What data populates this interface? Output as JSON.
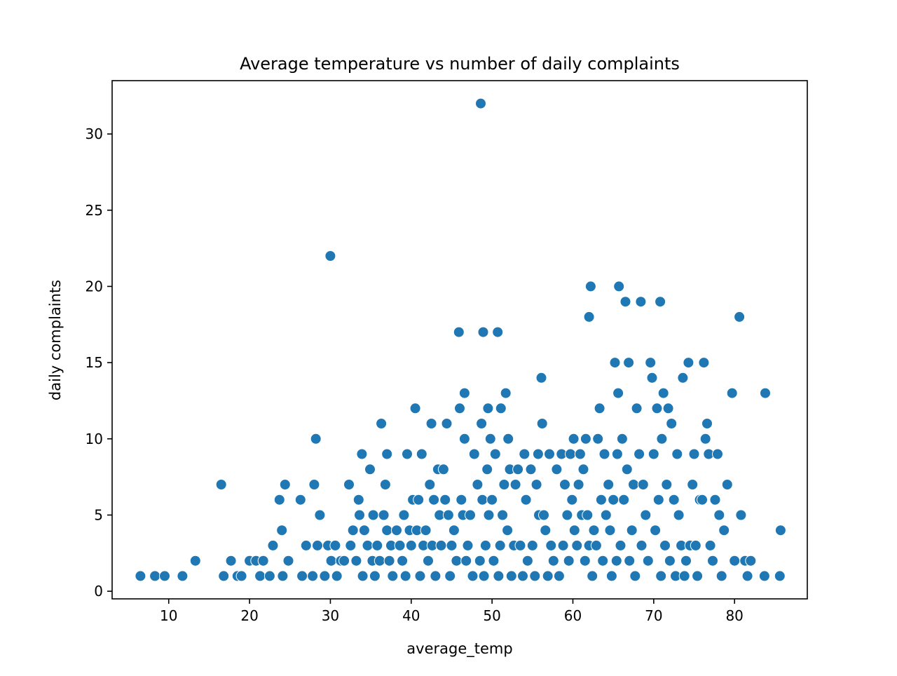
{
  "chart_data": {
    "type": "scatter",
    "title": "Average temperature vs number of daily complaints",
    "xlabel": "average_temp",
    "ylabel": "daily complaints",
    "xlim": [
      3,
      89
    ],
    "ylim": [
      -0.5,
      33.5
    ],
    "xticks": [
      10,
      20,
      30,
      40,
      50,
      60,
      70,
      80
    ],
    "yticks": [
      0,
      5,
      10,
      15,
      20,
      25,
      30
    ],
    "grid": false,
    "legend": "none",
    "marker_color": "#1f77b4",
    "points": [
      [
        6.5,
        1
      ],
      [
        8.3,
        1
      ],
      [
        9.5,
        1
      ],
      [
        11.7,
        1
      ],
      [
        13.3,
        2
      ],
      [
        16.5,
        7
      ],
      [
        16.8,
        1
      ],
      [
        17.7,
        2
      ],
      [
        18.5,
        1
      ],
      [
        19,
        1
      ],
      [
        20,
        2
      ],
      [
        20.8,
        2
      ],
      [
        21.3,
        1
      ],
      [
        21.7,
        2
      ],
      [
        22.5,
        1
      ],
      [
        22.9,
        3
      ],
      [
        23.7,
        6
      ],
      [
        24,
        4
      ],
      [
        24.1,
        1
      ],
      [
        24.4,
        7
      ],
      [
        24.8,
        2
      ],
      [
        26.3,
        6
      ],
      [
        26.5,
        1
      ],
      [
        27,
        3
      ],
      [
        27.8,
        1
      ],
      [
        28,
        7
      ],
      [
        28.2,
        10
      ],
      [
        28.4,
        3
      ],
      [
        28.7,
        5
      ],
      [
        29.3,
        1
      ],
      [
        29.7,
        3
      ],
      [
        30,
        22
      ],
      [
        30.1,
        2
      ],
      [
        30.6,
        3
      ],
      [
        30.8,
        1
      ],
      [
        31.3,
        2
      ],
      [
        31.7,
        2
      ],
      [
        32.3,
        7
      ],
      [
        32.5,
        3
      ],
      [
        32.8,
        4
      ],
      [
        33.2,
        2
      ],
      [
        33.5,
        6
      ],
      [
        33.6,
        5
      ],
      [
        33.9,
        9
      ],
      [
        34,
        1
      ],
      [
        34.2,
        4
      ],
      [
        34.6,
        3
      ],
      [
        34.9,
        8
      ],
      [
        35.2,
        2
      ],
      [
        35.3,
        5
      ],
      [
        35.5,
        1
      ],
      [
        35.8,
        3
      ],
      [
        36.1,
        2
      ],
      [
        36.3,
        11
      ],
      [
        36.6,
        5
      ],
      [
        36.8,
        7
      ],
      [
        37,
        9
      ],
      [
        37,
        4
      ],
      [
        37.3,
        2
      ],
      [
        37.5,
        3
      ],
      [
        37.7,
        1
      ],
      [
        38.2,
        4
      ],
      [
        38.6,
        3
      ],
      [
        38.9,
        2
      ],
      [
        39.1,
        5
      ],
      [
        39.3,
        1
      ],
      [
        39.5,
        9
      ],
      [
        39.8,
        4
      ],
      [
        40,
        3
      ],
      [
        40.2,
        6
      ],
      [
        40.5,
        12
      ],
      [
        40.7,
        4
      ],
      [
        40.9,
        6
      ],
      [
        41.1,
        1
      ],
      [
        41.3,
        9
      ],
      [
        41.5,
        3
      ],
      [
        41.8,
        4
      ],
      [
        42.1,
        2
      ],
      [
        42.3,
        7
      ],
      [
        42.5,
        11
      ],
      [
        42.6,
        3
      ],
      [
        42.8,
        6
      ],
      [
        43,
        1
      ],
      [
        43.3,
        8
      ],
      [
        43.5,
        5
      ],
      [
        43.7,
        3
      ],
      [
        44,
        8
      ],
      [
        44.2,
        6
      ],
      [
        44.4,
        11
      ],
      [
        44.6,
        5
      ],
      [
        44.8,
        1
      ],
      [
        45,
        3
      ],
      [
        45.3,
        4
      ],
      [
        45.6,
        2
      ],
      [
        45.9,
        17
      ],
      [
        46,
        12
      ],
      [
        46.2,
        6
      ],
      [
        46.4,
        5
      ],
      [
        46.6,
        13
      ],
      [
        46.6,
        10
      ],
      [
        46.8,
        2
      ],
      [
        47,
        3
      ],
      [
        47.3,
        5
      ],
      [
        47.6,
        1
      ],
      [
        47.8,
        9
      ],
      [
        48.2,
        7
      ],
      [
        48.5,
        2
      ],
      [
        48.6,
        32
      ],
      [
        48.7,
        11
      ],
      [
        48.8,
        6
      ],
      [
        48.9,
        17
      ],
      [
        49,
        1
      ],
      [
        49.2,
        3
      ],
      [
        49.4,
        8
      ],
      [
        49.5,
        12
      ],
      [
        49.6,
        5
      ],
      [
        49.8,
        10
      ],
      [
        50,
        6
      ],
      [
        50.2,
        2
      ],
      [
        50.4,
        9
      ],
      [
        50.7,
        17
      ],
      [
        50.8,
        1
      ],
      [
        51,
        3
      ],
      [
        51.1,
        12
      ],
      [
        51.3,
        5
      ],
      [
        51.5,
        7
      ],
      [
        51.7,
        13
      ],
      [
        51.9,
        4
      ],
      [
        52,
        10
      ],
      [
        52.2,
        8
      ],
      [
        52.4,
        1
      ],
      [
        52.7,
        3
      ],
      [
        52.9,
        7
      ],
      [
        53.2,
        8
      ],
      [
        53.5,
        3
      ],
      [
        53.8,
        1
      ],
      [
        54,
        9
      ],
      [
        54.2,
        6
      ],
      [
        54.4,
        2
      ],
      [
        54.8,
        8
      ],
      [
        55,
        3
      ],
      [
        55.3,
        1
      ],
      [
        55.5,
        7
      ],
      [
        55.7,
        9
      ],
      [
        55.8,
        5
      ],
      [
        56.1,
        14
      ],
      [
        56.2,
        11
      ],
      [
        56.4,
        5
      ],
      [
        56.6,
        4
      ],
      [
        56.9,
        1
      ],
      [
        57.1,
        9
      ],
      [
        57.3,
        3
      ],
      [
        57.6,
        2
      ],
      [
        58,
        8
      ],
      [
        58.3,
        1
      ],
      [
        58.6,
        9
      ],
      [
        58.8,
        3
      ],
      [
        59,
        7
      ],
      [
        59.3,
        5
      ],
      [
        59.5,
        2
      ],
      [
        59.7,
        9
      ],
      [
        59.9,
        6
      ],
      [
        60.1,
        10
      ],
      [
        60.2,
        4
      ],
      [
        60.5,
        3
      ],
      [
        60.7,
        7
      ],
      [
        60.9,
        9
      ],
      [
        61.1,
        5
      ],
      [
        61.3,
        8
      ],
      [
        61.5,
        2
      ],
      [
        61.6,
        10
      ],
      [
        61.8,
        5
      ],
      [
        62,
        18
      ],
      [
        62,
        3
      ],
      [
        62.2,
        20
      ],
      [
        62.4,
        1
      ],
      [
        62.6,
        4
      ],
      [
        62.9,
        3
      ],
      [
        63.1,
        10
      ],
      [
        63.3,
        12
      ],
      [
        63.5,
        6
      ],
      [
        63.7,
        2
      ],
      [
        63.9,
        9
      ],
      [
        64.1,
        5
      ],
      [
        64.4,
        7
      ],
      [
        64.6,
        4
      ],
      [
        64.8,
        1
      ],
      [
        65,
        6
      ],
      [
        65.2,
        15
      ],
      [
        65.4,
        2
      ],
      [
        65.5,
        9
      ],
      [
        65.6,
        13
      ],
      [
        65.7,
        20
      ],
      [
        65.9,
        3
      ],
      [
        66.1,
        10
      ],
      [
        66.3,
        6
      ],
      [
        66.5,
        19
      ],
      [
        66.7,
        8
      ],
      [
        66.9,
        15
      ],
      [
        67,
        2
      ],
      [
        67.3,
        4
      ],
      [
        67.5,
        7
      ],
      [
        67.7,
        1
      ],
      [
        67.9,
        12
      ],
      [
        68.2,
        9
      ],
      [
        68.4,
        19
      ],
      [
        68.5,
        3
      ],
      [
        68.7,
        7
      ],
      [
        69,
        5
      ],
      [
        69.3,
        2
      ],
      [
        69.6,
        15
      ],
      [
        69.8,
        14
      ],
      [
        70,
        9
      ],
      [
        70.2,
        4
      ],
      [
        70.4,
        12
      ],
      [
        70.6,
        6
      ],
      [
        70.8,
        19
      ],
      [
        70.9,
        1
      ],
      [
        71,
        10
      ],
      [
        71.2,
        13
      ],
      [
        71.4,
        3
      ],
      [
        71.6,
        7
      ],
      [
        71.8,
        12
      ],
      [
        72,
        2
      ],
      [
        72.2,
        11
      ],
      [
        72.5,
        6
      ],
      [
        72.7,
        1
      ],
      [
        72.9,
        9
      ],
      [
        73.1,
        5
      ],
      [
        73.4,
        3
      ],
      [
        73.6,
        14
      ],
      [
        73.8,
        1
      ],
      [
        74,
        2
      ],
      [
        74.3,
        15
      ],
      [
        74.5,
        3
      ],
      [
        74.8,
        7
      ],
      [
        75,
        9
      ],
      [
        75.2,
        3
      ],
      [
        75.4,
        1
      ],
      [
        75.7,
        6
      ],
      [
        76,
        6
      ],
      [
        76.2,
        15
      ],
      [
        76.4,
        10
      ],
      [
        76.6,
        11
      ],
      [
        76.8,
        9
      ],
      [
        77,
        3
      ],
      [
        77.3,
        2
      ],
      [
        77.6,
        6
      ],
      [
        77.9,
        9
      ],
      [
        78.1,
        5
      ],
      [
        78.4,
        1
      ],
      [
        78.7,
        4
      ],
      [
        79.1,
        7
      ],
      [
        79.7,
        13
      ],
      [
        80,
        2
      ],
      [
        80.6,
        18
      ],
      [
        80.8,
        5
      ],
      [
        81.3,
        2
      ],
      [
        81.6,
        1
      ],
      [
        82,
        2
      ],
      [
        83.7,
        1
      ],
      [
        83.8,
        13
      ],
      [
        85.6,
        1
      ],
      [
        85.7,
        4
      ]
    ]
  }
}
